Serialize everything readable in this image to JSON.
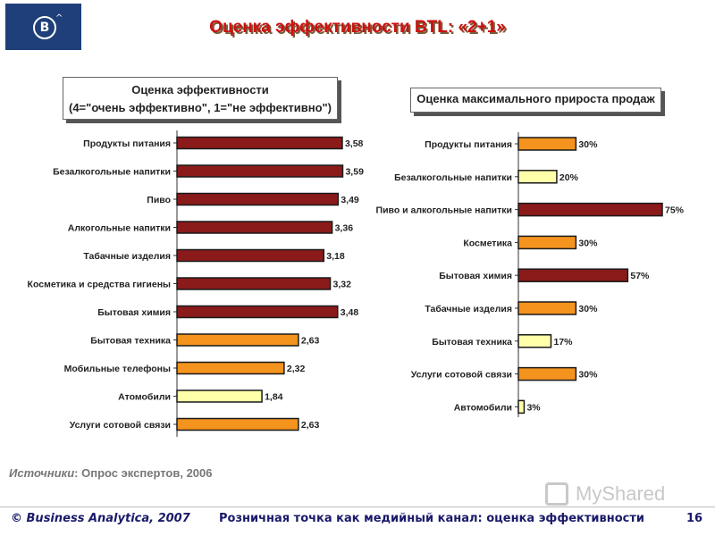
{
  "logo": {
    "letter": "B",
    "caret": "^"
  },
  "title": "Оценка эффективности BTL: «2+1»",
  "chart_data": [
    {
      "type": "bar",
      "orientation": "horizontal",
      "title": "Оценка эффективности\n(4=\"очень эффективно\", 1=\"не эффективно\")",
      "categories": [
        "Продукты питания",
        "Безалкогольные напитки",
        "Пиво",
        "Алкогольные напитки",
        "Табачные изделия",
        "Косметика и средства гигиены",
        "Бытовая химия",
        "Бытовая техника",
        "Мобильные телефоны",
        "Атомобили",
        "Услуги сотовой связи"
      ],
      "values": [
        3.58,
        3.59,
        3.49,
        3.36,
        3.18,
        3.32,
        3.48,
        2.63,
        2.32,
        1.84,
        2.63
      ],
      "value_labels": [
        "3,58",
        "3,59",
        "3,49",
        "3,36",
        "3,18",
        "3,32",
        "3,48",
        "2,63",
        "2,32",
        "1,84",
        "2,63"
      ],
      "bar_colors": [
        "#8b1a1a",
        "#8b1a1a",
        "#8b1a1a",
        "#8b1a1a",
        "#8b1a1a",
        "#8b1a1a",
        "#8b1a1a",
        "#f4931e",
        "#f4931e",
        "#ffffaa",
        "#f4931e"
      ],
      "xlim": [
        0,
        3.6
      ]
    },
    {
      "type": "bar",
      "orientation": "horizontal",
      "title": "Оценка максимального прироста продаж",
      "categories": [
        "Продукты питания",
        "Безалкогольные напитки",
        "Пиво и алкогольные напитки",
        "Косметика",
        "Бытовая химия",
        "Табачные изделия",
        "Бытовая техника",
        "Услуги сотовой связи",
        "Автомобили"
      ],
      "values": [
        30,
        20,
        75,
        30,
        57,
        30,
        17,
        30,
        3
      ],
      "value_labels": [
        "30%",
        "20%",
        "75%",
        "30%",
        "57%",
        "30%",
        "17%",
        "30%",
        "3%"
      ],
      "bar_colors": [
        "#f4931e",
        "#ffffaa",
        "#8b1a1a",
        "#f4931e",
        "#8b1a1a",
        "#f4931e",
        "#ffffaa",
        "#f4931e",
        "#ffffaa"
      ],
      "xlim": [
        0,
        75
      ]
    }
  ],
  "sources": {
    "label": "Источники",
    "text": ": Опрос экспертов, 2006"
  },
  "watermark": "MyShared",
  "footer": {
    "copyright": "© Business Analytica, 2007",
    "caption": "Розничная точка как медийный канал: оценка эффективности",
    "page": "16"
  }
}
